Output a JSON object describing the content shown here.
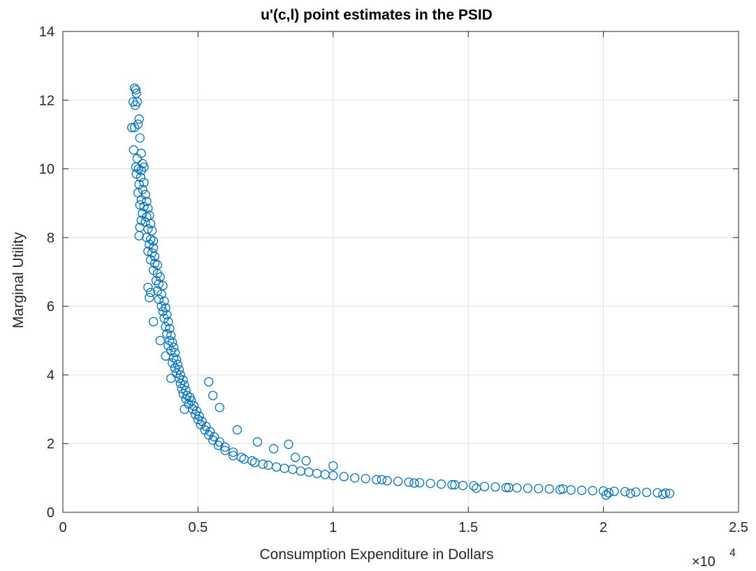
{
  "chart_data": {
    "type": "scatter",
    "title": "u'(c,l) point estimates in the PSID",
    "xlabel": "Consumption Expenditure in Dollars",
    "ylabel": "Marginal Utility",
    "x_exponent_label": "×10",
    "x_exponent": "4",
    "xlim": [
      0,
      25000
    ],
    "ylim": [
      0,
      14
    ],
    "x_ticks": [
      0,
      5000,
      10000,
      15000,
      20000,
      25000
    ],
    "x_tick_labels": [
      "0",
      "0.5",
      "1",
      "1.5",
      "2",
      "2.5"
    ],
    "y_ticks": [
      0,
      2,
      4,
      6,
      8,
      10,
      12,
      14
    ],
    "y_tick_labels": [
      "0",
      "2",
      "4",
      "6",
      "8",
      "10",
      "12",
      "14"
    ],
    "grid": true,
    "marker": "circle",
    "marker_color": "#0072bd",
    "series": [
      {
        "points": [
          [
            2650,
            12.35
          ],
          [
            2700,
            12.3
          ],
          [
            2720,
            12.2
          ],
          [
            2600,
            11.95
          ],
          [
            2750,
            11.95
          ],
          [
            2680,
            11.85
          ],
          [
            2820,
            11.45
          ],
          [
            2550,
            11.2
          ],
          [
            2650,
            11.2
          ],
          [
            2780,
            11.3
          ],
          [
            2850,
            10.9
          ],
          [
            2900,
            10.45
          ],
          [
            2620,
            10.55
          ],
          [
            2750,
            10.3
          ],
          [
            2950,
            10.15
          ],
          [
            2700,
            10.05
          ],
          [
            2800,
            10.0
          ],
          [
            2900,
            9.95
          ],
          [
            3000,
            10.05
          ],
          [
            2720,
            9.85
          ],
          [
            2880,
            9.75
          ],
          [
            3000,
            9.6
          ],
          [
            2820,
            9.55
          ],
          [
            2950,
            9.4
          ],
          [
            2780,
            9.3
          ],
          [
            3050,
            9.25
          ],
          [
            2900,
            9.1
          ],
          [
            3100,
            9.05
          ],
          [
            2850,
            8.95
          ],
          [
            3000,
            8.9
          ],
          [
            3150,
            8.85
          ],
          [
            2950,
            8.7
          ],
          [
            3100,
            8.6
          ],
          [
            3200,
            8.65
          ],
          [
            2900,
            8.5
          ],
          [
            3050,
            8.45
          ],
          [
            3250,
            8.4
          ],
          [
            2850,
            8.3
          ],
          [
            3150,
            8.25
          ],
          [
            3300,
            8.2
          ],
          [
            2820,
            8.05
          ],
          [
            3100,
            8.0
          ],
          [
            3250,
            7.95
          ],
          [
            3350,
            7.9
          ],
          [
            3200,
            7.8
          ],
          [
            3350,
            7.7
          ],
          [
            3150,
            7.6
          ],
          [
            3300,
            7.55
          ],
          [
            3400,
            7.45
          ],
          [
            3250,
            7.35
          ],
          [
            3400,
            7.25
          ],
          [
            3500,
            7.2
          ],
          [
            3350,
            7.05
          ],
          [
            3500,
            6.95
          ],
          [
            3600,
            6.85
          ],
          [
            3450,
            6.75
          ],
          [
            3550,
            6.65
          ],
          [
            3700,
            6.6
          ],
          [
            3150,
            6.55
          ],
          [
            3250,
            6.4
          ],
          [
            3200,
            6.25
          ],
          [
            3500,
            6.45
          ],
          [
            3650,
            6.35
          ],
          [
            3550,
            6.2
          ],
          [
            3750,
            6.15
          ],
          [
            3650,
            6.0
          ],
          [
            3800,
            5.95
          ],
          [
            3700,
            5.85
          ],
          [
            3850,
            5.75
          ],
          [
            3750,
            5.65
          ],
          [
            3350,
            5.55
          ],
          [
            3900,
            5.55
          ],
          [
            3800,
            5.4
          ],
          [
            3950,
            5.35
          ],
          [
            3850,
            5.2
          ],
          [
            4000,
            5.15
          ],
          [
            3600,
            5.0
          ],
          [
            3950,
            5.0
          ],
          [
            4050,
            4.95
          ],
          [
            3900,
            4.85
          ],
          [
            4100,
            4.8
          ],
          [
            4000,
            4.7
          ],
          [
            4150,
            4.65
          ],
          [
            3800,
            4.55
          ],
          [
            4100,
            4.5
          ],
          [
            4200,
            4.45
          ],
          [
            4050,
            4.35
          ],
          [
            4250,
            4.3
          ],
          [
            4150,
            4.2
          ],
          [
            4300,
            4.15
          ],
          [
            4200,
            4.05
          ],
          [
            4350,
            4.0
          ],
          [
            4000,
            3.9
          ],
          [
            4300,
            3.9
          ],
          [
            4450,
            3.85
          ],
          [
            4350,
            3.75
          ],
          [
            4500,
            3.7
          ],
          [
            4400,
            3.6
          ],
          [
            4550,
            3.55
          ],
          [
            4450,
            3.45
          ],
          [
            4600,
            3.4
          ],
          [
            4700,
            3.35
          ],
          [
            4550,
            3.3
          ],
          [
            4750,
            3.25
          ],
          [
            4650,
            3.15
          ],
          [
            4850,
            3.1
          ],
          [
            4500,
            3.0
          ],
          [
            4800,
            3.0
          ],
          [
            4950,
            2.95
          ],
          [
            4900,
            2.85
          ],
          [
            5050,
            2.8
          ],
          [
            5000,
            2.7
          ],
          [
            5150,
            2.65
          ],
          [
            5100,
            2.55
          ],
          [
            5300,
            2.5
          ],
          [
            5250,
            2.4
          ],
          [
            5450,
            2.35
          ],
          [
            5400,
            2.25
          ],
          [
            5600,
            2.2
          ],
          [
            5550,
            2.1
          ],
          [
            5800,
            2.05
          ],
          [
            5750,
            1.95
          ],
          [
            6000,
            1.9
          ],
          [
            6000,
            1.8
          ],
          [
            6300,
            1.75
          ],
          [
            6300,
            1.65
          ],
          [
            6600,
            1.6
          ],
          [
            6700,
            1.55
          ],
          [
            7000,
            1.5
          ],
          [
            7100,
            1.45
          ],
          [
            7400,
            1.4
          ],
          [
            7600,
            1.37
          ],
          [
            7900,
            1.32
          ],
          [
            8200,
            1.28
          ],
          [
            8500,
            1.25
          ],
          [
            8800,
            1.2
          ],
          [
            9100,
            1.17
          ],
          [
            9400,
            1.13
          ],
          [
            9700,
            1.1
          ],
          [
            10000,
            1.07
          ],
          [
            10400,
            1.04
          ],
          [
            10800,
            1.0
          ],
          [
            11200,
            0.98
          ],
          [
            11600,
            0.95
          ],
          [
            12000,
            0.92
          ],
          [
            12400,
            0.9
          ],
          [
            12800,
            0.88
          ],
          [
            13200,
            0.86
          ],
          [
            13600,
            0.84
          ],
          [
            14000,
            0.82
          ],
          [
            14400,
            0.8
          ],
          [
            14800,
            0.78
          ],
          [
            15200,
            0.77
          ],
          [
            15600,
            0.75
          ],
          [
            16000,
            0.74
          ],
          [
            16400,
            0.72
          ],
          [
            16800,
            0.71
          ],
          [
            17200,
            0.7
          ],
          [
            17600,
            0.69
          ],
          [
            18000,
            0.68
          ],
          [
            18400,
            0.66
          ],
          [
            18800,
            0.65
          ],
          [
            19200,
            0.64
          ],
          [
            19600,
            0.63
          ],
          [
            20000,
            0.62
          ],
          [
            20400,
            0.61
          ],
          [
            20800,
            0.6
          ],
          [
            21200,
            0.59
          ],
          [
            21600,
            0.58
          ],
          [
            22000,
            0.57
          ],
          [
            22300,
            0.56
          ],
          [
            22450,
            0.55
          ],
          [
            5400,
            3.8
          ],
          [
            5550,
            3.4
          ],
          [
            5800,
            3.05
          ],
          [
            6450,
            2.4
          ],
          [
            7200,
            2.05
          ],
          [
            7800,
            1.85
          ],
          [
            8350,
            1.98
          ],
          [
            8600,
            1.6
          ],
          [
            9000,
            1.5
          ],
          [
            10000,
            1.35
          ],
          [
            11800,
            0.95
          ],
          [
            13000,
            0.85
          ],
          [
            14500,
            0.8
          ],
          [
            16500,
            0.72
          ],
          [
            18500,
            0.68
          ],
          [
            20200,
            0.57
          ],
          [
            21000,
            0.55
          ],
          [
            22200,
            0.52
          ],
          [
            20100,
            0.5
          ],
          [
            15300,
            0.7
          ]
        ]
      }
    ]
  }
}
